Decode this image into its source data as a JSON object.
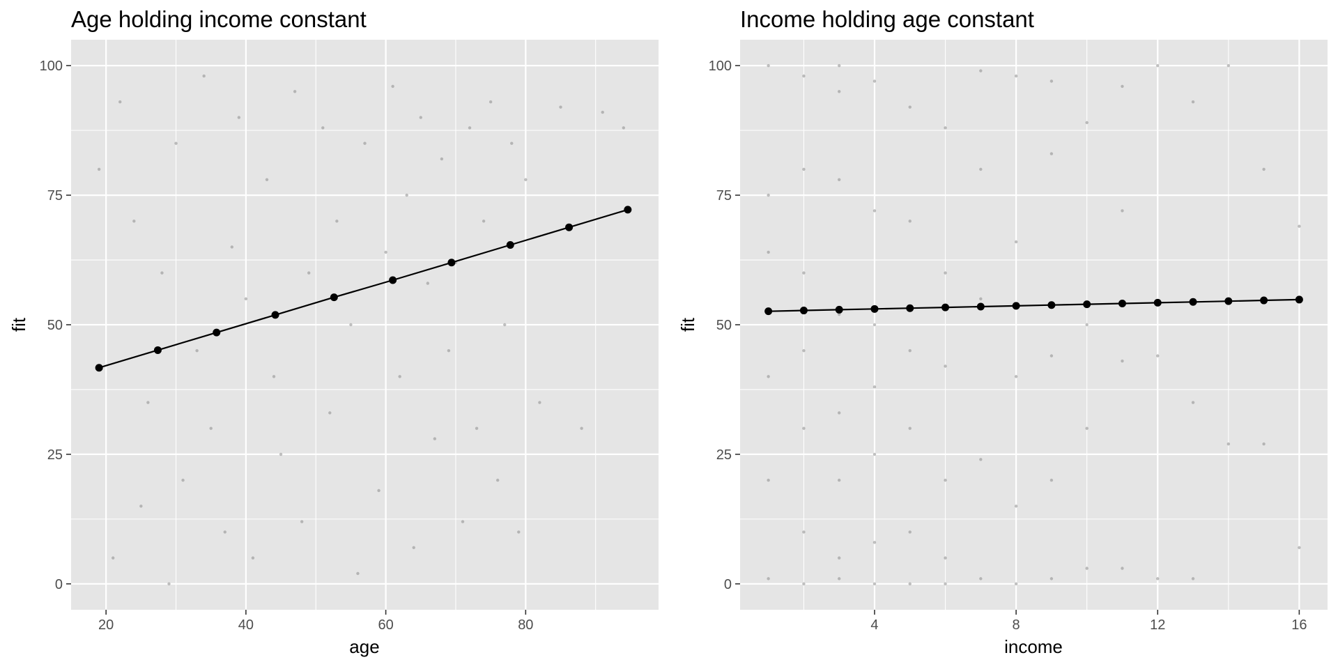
{
  "chart_data": [
    {
      "type": "scatter",
      "title": "Age holding income constant",
      "xlabel": "age",
      "ylabel": "fit",
      "xlim": [
        15,
        99
      ],
      "ylim": [
        -5,
        105
      ],
      "x_ticks": [
        20,
        40,
        60,
        80
      ],
      "y_ticks": [
        0,
        25,
        50,
        75,
        100
      ],
      "grid": true,
      "background": "#e5e5e5",
      "raw_points_note": "hundreds of faint grey raw observation points; representative sample",
      "raw_points_x": [
        19,
        21,
        22,
        24,
        25,
        26,
        28,
        29,
        30,
        31,
        33,
        34,
        35,
        37,
        38,
        39,
        40,
        41,
        43,
        44,
        45,
        47,
        48,
        49,
        51,
        52,
        53,
        55,
        56,
        57,
        59,
        60,
        61,
        62,
        63,
        64,
        65,
        66,
        67,
        68,
        69,
        70,
        71,
        72,
        73,
        74,
        75,
        76,
        77,
        78,
        79,
        80,
        82,
        85,
        88,
        91,
        94
      ],
      "raw_points_y": [
        80,
        5,
        93,
        70,
        15,
        35,
        60,
        0,
        85,
        20,
        45,
        98,
        30,
        10,
        65,
        90,
        55,
        5,
        78,
        40,
        25,
        95,
        12,
        60,
        88,
        33,
        70,
        50,
        2,
        85,
        18,
        64,
        96,
        40,
        75,
        7,
        90,
        58,
        28,
        82,
        45,
        62,
        12,
        88,
        30,
        70,
        93,
        20,
        50,
        85,
        10,
        78,
        35,
        92,
        30,
        91,
        88
      ],
      "fit_line": {
        "x": [
          19,
          27.4,
          35.8,
          44.2,
          52.6,
          61,
          69.4,
          77.8,
          86.2,
          94.6
        ],
        "y": [
          41.7,
          45.1,
          48.5,
          51.9,
          55.3,
          58.6,
          62.0,
          65.4,
          68.8,
          72.2
        ]
      }
    },
    {
      "type": "scatter",
      "title": "Income holding age constant",
      "xlabel": "income",
      "ylabel": "fit",
      "xlim": [
        0.2,
        16.8
      ],
      "ylim": [
        -5,
        105
      ],
      "x_ticks": [
        4,
        8,
        12,
        16
      ],
      "y_ticks": [
        0,
        25,
        50,
        75,
        100
      ],
      "grid": true,
      "background": "#e5e5e5",
      "raw_points_note": "raw observations stacked in vertical columns at integer income values; representative sample",
      "raw_points_x": [
        1,
        1,
        1,
        1,
        1,
        1,
        2,
        2,
        2,
        2,
        2,
        2,
        2,
        3,
        3,
        3,
        3,
        3,
        3,
        3,
        3,
        4,
        4,
        4,
        4,
        4,
        4,
        4,
        5,
        5,
        5,
        5,
        5,
        5,
        6,
        6,
        6,
        6,
        6,
        6,
        7,
        7,
        7,
        7,
        7,
        8,
        8,
        8,
        8,
        8,
        9,
        9,
        9,
        9,
        9,
        10,
        10,
        10,
        10,
        11,
        11,
        11,
        11,
        12,
        12,
        12,
        13,
        13,
        13,
        14,
        14,
        15,
        15,
        16,
        16
      ],
      "raw_points_y": [
        100,
        75,
        64,
        40,
        20,
        1,
        98,
        80,
        60,
        45,
        30,
        10,
        0,
        100,
        95,
        78,
        52,
        33,
        20,
        5,
        1,
        97,
        72,
        50,
        38,
        25,
        8,
        0,
        92,
        70,
        45,
        30,
        10,
        0,
        88,
        60,
        42,
        20,
        5,
        0,
        99,
        80,
        55,
        24,
        1,
        98,
        66,
        40,
        15,
        0,
        97,
        83,
        44,
        20,
        1,
        89,
        50,
        30,
        3,
        96,
        72,
        43,
        3,
        100,
        44,
        1,
        93,
        35,
        1,
        100,
        27,
        80,
        27,
        69,
        7
      ],
      "fit_line": {
        "x": [
          1,
          2,
          3,
          4,
          5,
          6,
          7,
          8,
          9,
          10,
          11,
          12,
          13,
          14,
          15,
          16
        ],
        "y": [
          52.6,
          52.75,
          52.9,
          53.05,
          53.2,
          53.35,
          53.5,
          53.65,
          53.8,
          53.95,
          54.1,
          54.25,
          54.4,
          54.55,
          54.7,
          54.85
        ]
      }
    }
  ]
}
